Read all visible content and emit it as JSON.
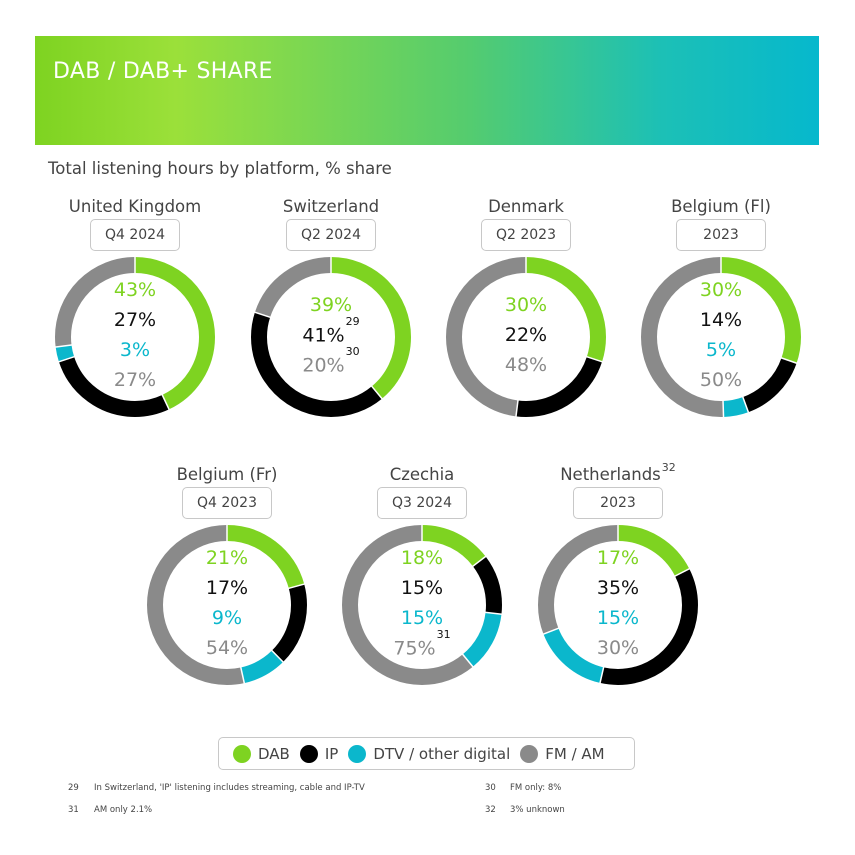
{
  "banner": {
    "title": "DAB / DAB+ SHARE"
  },
  "subtitle": "Total listening hours by platform, % share",
  "colors": {
    "DAB": "#7ed321",
    "IP": "#000000",
    "DTV": "#0bb7cc",
    "FM": "#8a8a8a"
  },
  "legend": [
    {
      "key": "DAB",
      "label": "DAB"
    },
    {
      "key": "IP",
      "label": "IP"
    },
    {
      "key": "DTV",
      "label": "DTV / other digital"
    },
    {
      "key": "FM",
      "label": "FM / AM"
    }
  ],
  "chart_data": [
    {
      "type": "pie",
      "country": "United Kingdom",
      "period": "Q4 2024",
      "segments": [
        {
          "name": "DAB",
          "value": 43,
          "label": "43%"
        },
        {
          "name": "IP",
          "value": 27,
          "label": "27%"
        },
        {
          "name": "DTV",
          "value": 3,
          "label": "3%"
        },
        {
          "name": "FM",
          "value": 27,
          "label": "27%"
        }
      ]
    },
    {
      "type": "pie",
      "country": "Switzerland",
      "period": "Q2 2024",
      "segments": [
        {
          "name": "DAB",
          "value": 39,
          "label": "39%"
        },
        {
          "name": "IP",
          "value": 41,
          "label": "41%",
          "note": "29"
        },
        {
          "name": "FM",
          "value": 20,
          "label": "20%",
          "note": "30"
        }
      ]
    },
    {
      "type": "pie",
      "country": "Denmark",
      "period": "Q2 2023",
      "segments": [
        {
          "name": "DAB",
          "value": 30,
          "label": "30%"
        },
        {
          "name": "IP",
          "value": 22,
          "label": "22%"
        },
        {
          "name": "FM",
          "value": 48,
          "label": "48%"
        }
      ]
    },
    {
      "type": "pie",
      "country": "Belgium (Fl)",
      "period": "2023",
      "segments": [
        {
          "name": "DAB",
          "value": 30,
          "label": "30%"
        },
        {
          "name": "IP",
          "value": 14,
          "label": "14%"
        },
        {
          "name": "DTV",
          "value": 5,
          "label": "5%"
        },
        {
          "name": "FM",
          "value": 50,
          "label": "50%"
        }
      ]
    },
    {
      "type": "pie",
      "country": "Belgium (Fr)",
      "period": "Q4 2023",
      "segments": [
        {
          "name": "DAB",
          "value": 21,
          "label": "21%"
        },
        {
          "name": "IP",
          "value": 17,
          "label": "17%"
        },
        {
          "name": "DTV",
          "value": 9,
          "label": "9%"
        },
        {
          "name": "FM",
          "value": 54,
          "label": "54%"
        }
      ]
    },
    {
      "type": "pie",
      "country": "Czechia",
      "period": "Q3 2024",
      "segments": [
        {
          "name": "DAB",
          "value": 18,
          "label": "18%"
        },
        {
          "name": "IP",
          "value": 15,
          "label": "15%"
        },
        {
          "name": "DTV",
          "value": 15,
          "label": "15%"
        },
        {
          "name": "FM",
          "value": 75,
          "label": "75%",
          "note": "31"
        }
      ]
    },
    {
      "type": "pie",
      "country": "Netherlands",
      "country_note": "32",
      "period": "2023",
      "segments": [
        {
          "name": "DAB",
          "value": 17,
          "label": "17%"
        },
        {
          "name": "IP",
          "value": 35,
          "label": "35%"
        },
        {
          "name": "DTV",
          "value": 15,
          "label": "15%"
        },
        {
          "name": "FM",
          "value": 30,
          "label": "30%"
        }
      ]
    }
  ],
  "footnotes": [
    {
      "num": "29",
      "text": "In Switzerland, 'IP' listening includes streaming, cable and IP-TV"
    },
    {
      "num": "30",
      "text": "FM only: 8%"
    },
    {
      "num": "31",
      "text": "AM only 2.1%"
    },
    {
      "num": "32",
      "text": "3% unknown"
    }
  ]
}
